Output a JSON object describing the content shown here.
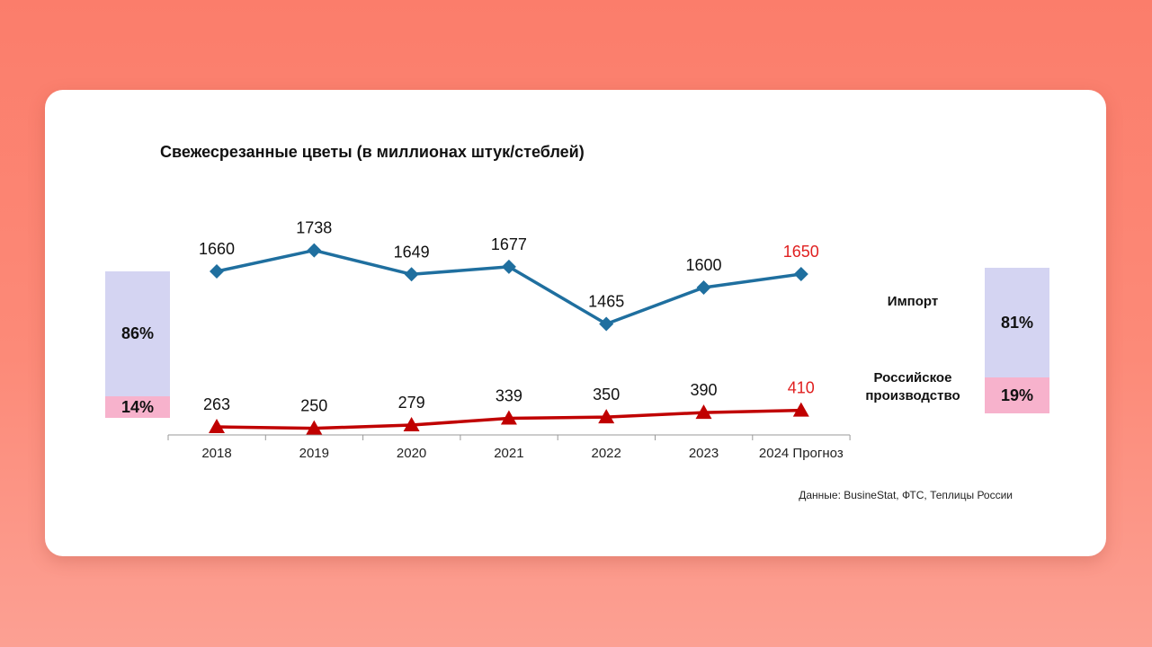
{
  "chart_data": {
    "type": "line",
    "title": "Свежесрезанные цветы (в миллионах штук/стеблей)",
    "categories": [
      "2018",
      "2019",
      "2020",
      "2021",
      "2022",
      "2023",
      "2024 Прогноз"
    ],
    "series": [
      {
        "name": "Импорт",
        "values": [
          1660,
          1738,
          1649,
          1677,
          1465,
          1600,
          1650
        ],
        "color": "#1f6f9f",
        "marker": "diamond",
        "label_colors": [
          "#111111",
          "#111111",
          "#111111",
          "#111111",
          "#111111",
          "#111111",
          "#e02020"
        ]
      },
      {
        "name": "Российское производство",
        "values": [
          263,
          250,
          279,
          339,
          350,
          390,
          410
        ],
        "color": "#c00000",
        "marker": "triangle",
        "label_colors": [
          "#111111",
          "#111111",
          "#111111",
          "#111111",
          "#111111",
          "#111111",
          "#e02020"
        ]
      }
    ],
    "shares": {
      "left": {
        "import": "86%",
        "domestic": "14%"
      },
      "right": {
        "import": "81%",
        "domestic": "19%"
      },
      "import_color": "#d4d4f2",
      "domestic_color": "#f7b2cc"
    }
  },
  "labels": {
    "import": "Импорт",
    "domestic_line1": "Российское",
    "domestic_line2": "производство"
  },
  "source": "Данные: BusineStat, ФТС, Теплицы России"
}
